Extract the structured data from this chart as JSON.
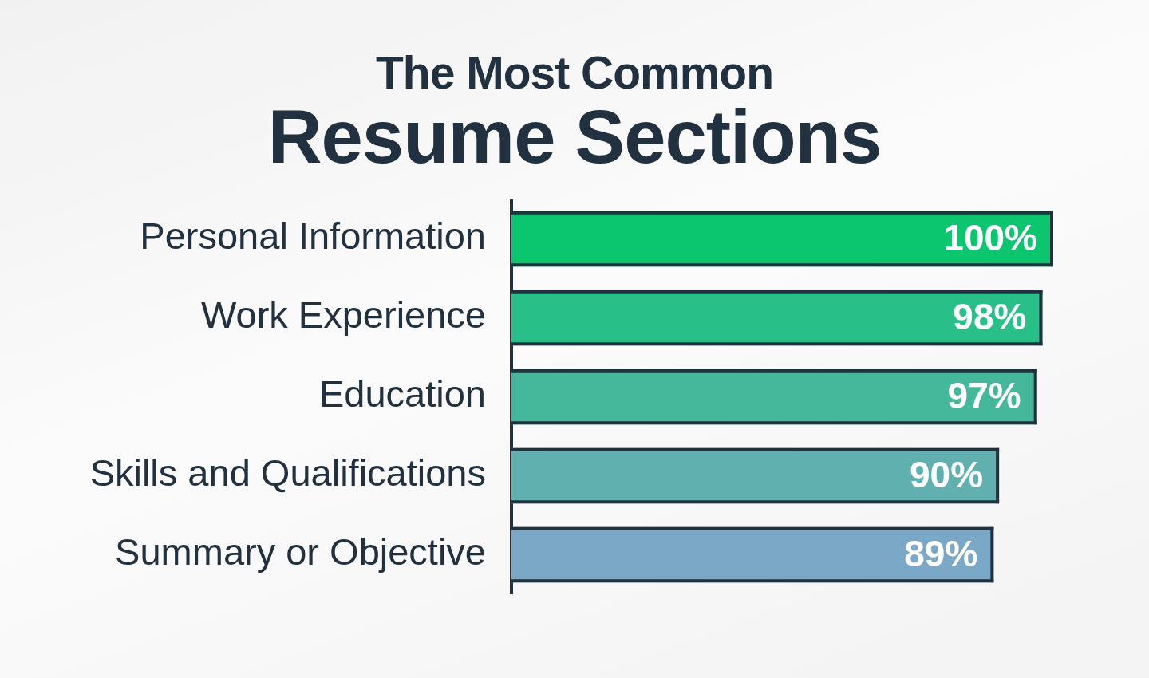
{
  "chart_data": {
    "type": "bar",
    "orientation": "horizontal",
    "title": "The Most Common",
    "subtitle": "Resume Sections",
    "categories": [
      "Personal Information",
      "Work Experience",
      "Education",
      "Skills and Qualifications",
      "Summary or Objective"
    ],
    "values": [
      100,
      98,
      97,
      90,
      89
    ],
    "colors": [
      "#0cc66f",
      "#29bf88",
      "#45b89c",
      "#61b0b0",
      "#7aa8c6"
    ],
    "value_labels": [
      "100%",
      "98%",
      "97%",
      "90%",
      "89%"
    ],
    "xlim": [
      0,
      100
    ],
    "tick_labels": "y"
  }
}
